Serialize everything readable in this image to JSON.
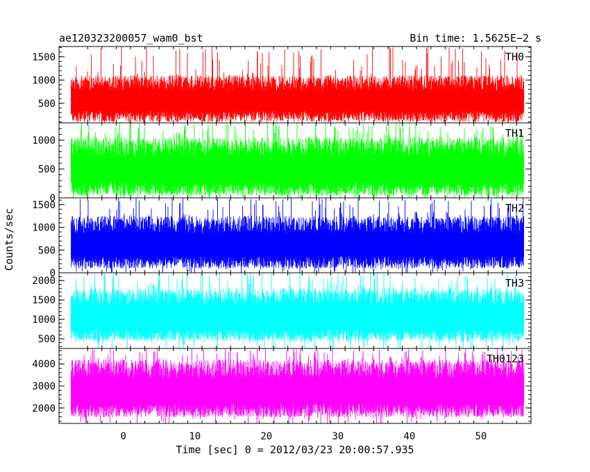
{
  "header": {
    "title": "ae120323200057_wam0_bst",
    "bin_time": "Bin time: 1.5625E−2 s"
  },
  "chart_data": {
    "type": "line",
    "xlabel": "Time [sec] 0 = 2012/03/23 20:00:57.935",
    "ylabel": "Counts/sec",
    "xlim": [
      -9,
      57
    ],
    "x_ticks": [
      0,
      10,
      20,
      30,
      40,
      50
    ],
    "x_range_data": [
      -7.3,
      56.0
    ],
    "bin_time_s": 0.015625,
    "panels": [
      {
        "name": "TH0",
        "color": "#ff0000",
        "ylim": [
          80,
          1720
        ],
        "y_ticks": [
          500,
          1000,
          1500
        ],
        "typical_low": 150,
        "typical_high": 1100,
        "mean": 620
      },
      {
        "name": "TH1",
        "color": "#00ff00",
        "ylim": [
          0,
          1300
        ],
        "y_ticks": [
          0,
          500,
          1000
        ],
        "typical_low": 80,
        "typical_high": 1050,
        "mean": 520
      },
      {
        "name": "TH2",
        "color": "#0000ff",
        "ylim": [
          0,
          1650
        ],
        "y_ticks": [
          0,
          500,
          1000,
          1500
        ],
        "typical_low": 150,
        "typical_high": 1250,
        "mean": 650
      },
      {
        "name": "TH3",
        "color": "#00ffff",
        "ylim": [
          250,
          2200
        ],
        "y_ticks": [
          500,
          1000,
          1500,
          2000
        ],
        "typical_low": 500,
        "typical_high": 1800,
        "mean": 1100
      },
      {
        "name": "TH0123",
        "color": "#ff00ff",
        "ylim": [
          1300,
          4700
        ],
        "y_ticks": [
          2000,
          3000,
          4000
        ],
        "typical_low": 1700,
        "typical_high": 4200,
        "mean": 2800
      }
    ]
  }
}
